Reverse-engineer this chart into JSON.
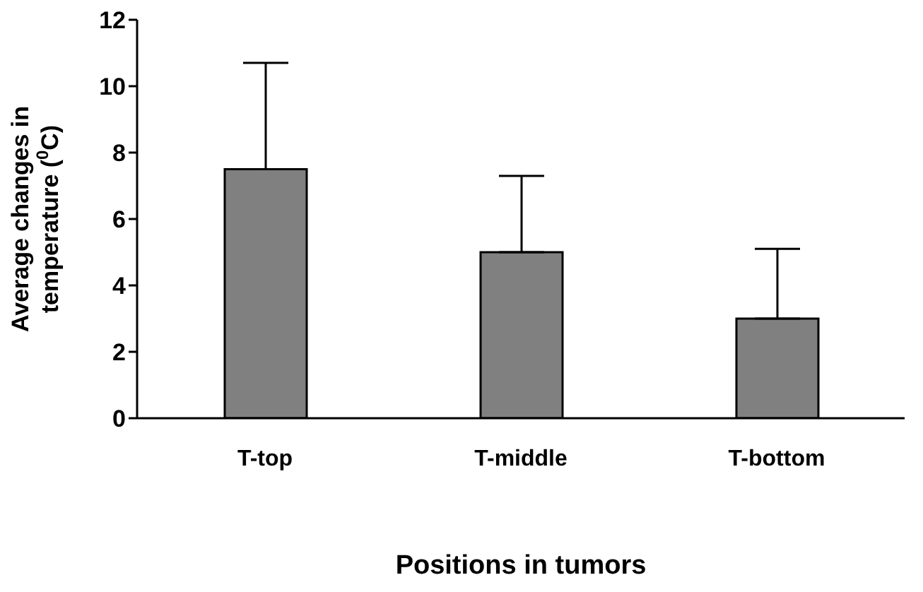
{
  "chart_data": {
    "type": "bar",
    "xlabel": "Positions in tumors",
    "ylabel": "Average changes in temperature ($^{0}$C)",
    "categories": [
      "T-top",
      "T-middle",
      "T-bottom"
    ],
    "values": [
      7.5,
      5.0,
      3.0
    ],
    "errors": [
      [
        7.5,
        10.7
      ],
      [
        5.0,
        7.3
      ],
      [
        3.0,
        5.1
      ]
    ],
    "color": "#808080",
    "ylim": [
      0,
      12
    ],
    "yticks": [
      0,
      2,
      4,
      6,
      8,
      10,
      12
    ],
    "grid": false,
    "legend": false
  }
}
